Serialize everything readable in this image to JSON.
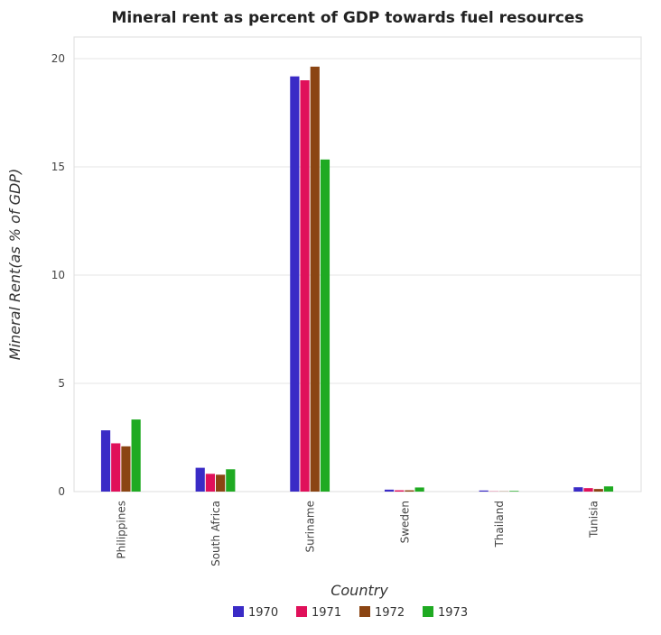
{
  "chart_data": {
    "type": "bar",
    "title": "Mineral rent as percent of GDP towards fuel resources",
    "xlabel": "Country",
    "ylabel": "Mineral Rent(as % of GDP)",
    "categories": [
      "Philippines",
      "South Africa",
      "Suriname",
      "Sweden",
      "Thailand",
      "Tunisia"
    ],
    "series": [
      {
        "name": "1970",
        "color": "#3a2bc6",
        "values": [
          2.83,
          1.1,
          19.18,
          0.09,
          0.05,
          0.2
        ]
      },
      {
        "name": "1971",
        "color": "#e0105a",
        "values": [
          2.23,
          0.82,
          19.0,
          0.06,
          0.01,
          0.16
        ]
      },
      {
        "name": "1972",
        "color": "#8b4513",
        "values": [
          2.09,
          0.78,
          19.63,
          0.06,
          0.01,
          0.12
        ]
      },
      {
        "name": "1973",
        "color": "#1faa22",
        "values": [
          3.33,
          1.03,
          15.34,
          0.19,
          0.03,
          0.24
        ]
      }
    ],
    "yticks": [
      0,
      5,
      10,
      15,
      20
    ],
    "ylim": [
      0,
      21
    ],
    "grid": true,
    "legend": "bottom-center"
  }
}
